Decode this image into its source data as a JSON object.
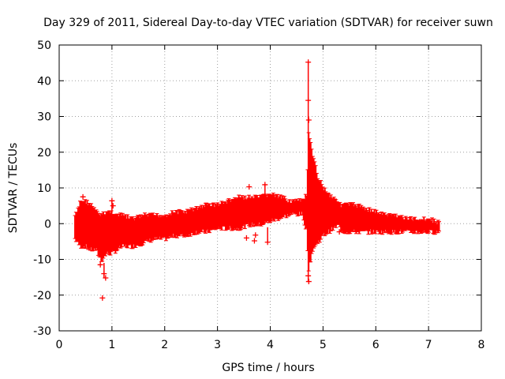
{
  "chart_data": {
    "type": "scatter",
    "title": "Day 329 of 2011, Sidereal Day-to-day VTEC variation (SDTVAR) for receiver suwn",
    "xlabel": "GPS time / hours",
    "ylabel": "SDTVAR / TECUs",
    "xlim": [
      0,
      8
    ],
    "ylim": [
      -30,
      50
    ],
    "x_ticks": [
      0,
      1,
      2,
      3,
      4,
      5,
      6,
      7,
      8
    ],
    "y_ticks": [
      -30,
      -20,
      -10,
      0,
      10,
      20,
      30,
      40,
      50
    ],
    "x_tick_labels": [
      "0",
      "1",
      "2",
      "3",
      "4",
      "5",
      "6",
      "7",
      "8"
    ],
    "y_tick_labels": [
      "-30",
      "-20",
      "-10",
      "0",
      "10",
      "20",
      "30",
      "40",
      "50"
    ],
    "grid": true,
    "series": [
      {
        "name": "SDTVAR",
        "color": "#ff0000",
        "marker": "plus",
        "envelope": {
          "x": [
            0.3,
            0.35,
            0.4,
            0.5,
            0.6,
            0.7,
            0.8,
            0.9,
            1.0,
            1.1,
            1.2,
            1.4,
            1.6,
            1.8,
            2.0,
            2.2,
            2.4,
            2.6,
            2.8,
            3.0,
            3.2,
            3.4,
            3.6,
            3.8,
            4.0,
            4.2,
            4.4,
            4.6,
            4.7,
            4.72,
            4.75,
            4.8,
            4.9,
            5.0,
            5.1,
            5.2,
            5.3,
            5.32,
            5.4,
            5.6,
            5.8,
            6.0,
            6.2,
            6.4,
            6.6,
            6.8,
            7.0,
            7.2
          ],
          "upper": [
            3,
            4,
            7,
            7,
            6,
            4,
            3,
            4,
            4,
            3,
            3,
            2,
            3,
            3,
            3,
            4,
            4,
            5,
            6,
            6,
            7,
            8,
            8,
            8,
            9,
            8,
            7,
            7,
            9,
            26,
            24,
            20,
            14,
            11,
            9,
            8,
            7,
            6,
            6,
            6,
            5,
            4,
            3,
            3,
            2,
            2,
            2,
            1
          ],
          "lower": [
            -5,
            -6,
            -7,
            -7,
            -8,
            -8,
            -11,
            -9,
            -9,
            -8,
            -7,
            -7,
            -6,
            -5,
            -5,
            -4,
            -4,
            -3,
            -3,
            -2,
            -2,
            -2,
            -1,
            -1,
            0,
            1,
            2,
            2,
            -3,
            -14,
            -12,
            -8,
            -6,
            -4,
            -3,
            -2,
            -1,
            -2,
            -3,
            -3,
            -3,
            -3,
            -3,
            -3,
            -3,
            -3,
            -3,
            -3
          ]
        },
        "outliers": [
          {
            "x": 4.72,
            "y": 45.2
          },
          {
            "x": 4.72,
            "y": 34.5
          },
          {
            "x": 4.73,
            "y": 29.0
          },
          {
            "x": 4.73,
            "y": -16.2
          },
          {
            "x": 4.72,
            "y": -14.6
          },
          {
            "x": 0.82,
            "y": -20.8
          },
          {
            "x": 0.85,
            "y": -14.0
          },
          {
            "x": 0.88,
            "y": -15.2
          },
          {
            "x": 1.0,
            "y": 6.4
          },
          {
            "x": 1.02,
            "y": 5.0
          },
          {
            "x": 0.78,
            "y": -11.5
          },
          {
            "x": 3.9,
            "y": 10.9
          },
          {
            "x": 3.95,
            "y": -5.2
          },
          {
            "x": 3.7,
            "y": -4.8
          },
          {
            "x": 3.72,
            "y": -3.2
          },
          {
            "x": 3.55,
            "y": -4.0
          },
          {
            "x": 3.6,
            "y": 10.3
          },
          {
            "x": 5.31,
            "y": -2.3
          },
          {
            "x": 0.45,
            "y": 7.5
          }
        ]
      }
    ]
  }
}
